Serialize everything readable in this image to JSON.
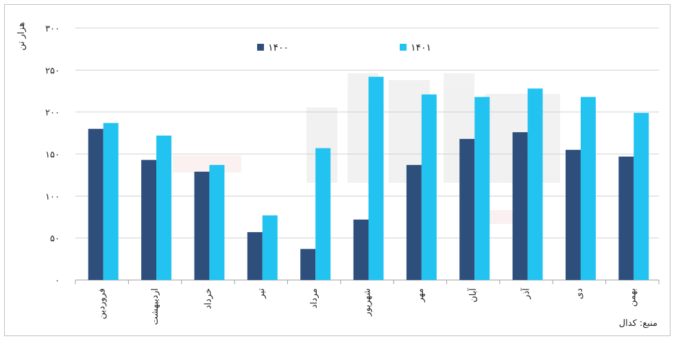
{
  "chart_data": {
    "type": "bar",
    "ylabel": "هزار تن",
    "ylim": [
      0,
      300
    ],
    "yticks": [
      0,
      50,
      100,
      150,
      200,
      250,
      300
    ],
    "ytick_labels": [
      "۰",
      "۵۰",
      "۱۰۰",
      "۱۵۰",
      "۲۰۰",
      "۲۵۰",
      "۳۰۰"
    ],
    "categories": [
      "فروردین",
      "اردیبهشت",
      "خرداد",
      "تیر",
      "مرداد",
      "شهریور",
      "مهر",
      "آبان",
      "آذر",
      "دی",
      "بهمن"
    ],
    "series": [
      {
        "name": "۱۴۰۰",
        "color": "#2e4f7c",
        "values": [
          180,
          143,
          129,
          57,
          37,
          72,
          137,
          168,
          176,
          155,
          147
        ]
      },
      {
        "name": "۱۴۰۱",
        "color": "#22c3f0",
        "values": [
          187,
          172,
          137,
          77,
          157,
          242,
          221,
          218,
          228,
          218,
          199
        ]
      }
    ],
    "grid": true,
    "legend": "top"
  },
  "source": "منبع: کدال"
}
